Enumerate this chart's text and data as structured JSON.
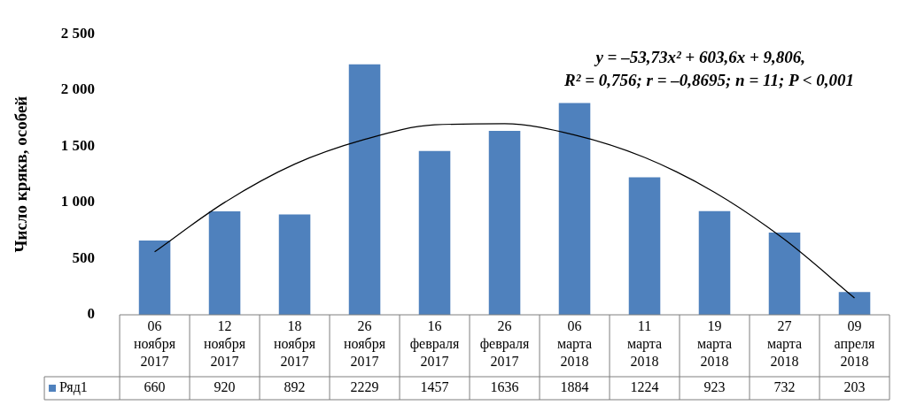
{
  "chart_data": {
    "type": "bar",
    "ylabel": "Число крякв, особей",
    "categories": [
      "06 ноября 2017",
      "12 ноября 2017",
      "18 ноября 2017",
      "26 ноября 2017",
      "16 февраля 2017",
      "26 февраля 2017",
      "06 марта 2018",
      "11 марта 2018",
      "19 марта 2018",
      "27 марта 2018",
      "09 апреля 2018"
    ],
    "series": [
      {
        "name": "Ряд1",
        "color": "#4f81bd",
        "values": [
          660,
          920,
          892,
          2229,
          1457,
          1636,
          1884,
          1224,
          923,
          732,
          203
        ],
        "value_labels": [
          "660",
          "920",
          "892",
          "2229",
          "1457",
          "1636",
          "1884",
          "1224",
          "923",
          "732",
          "203"
        ]
      },
      {
        "type": "line",
        "color": "#000000",
        "values": [
          560,
          1000,
          1340,
          1560,
          1690,
          1700,
          1600,
          1400,
          1090,
          670,
          150
        ]
      }
    ],
    "ylim": [
      0,
      2500
    ],
    "yticks": [
      {
        "value": 0,
        "label": "0"
      },
      {
        "value": 500,
        "label": "500"
      },
      {
        "value": 1000,
        "label": "1 000"
      },
      {
        "value": 1500,
        "label": "1 500"
      },
      {
        "value": 2000,
        "label": "2 000"
      },
      {
        "value": 2500,
        "label": "2 500"
      }
    ],
    "grid": false,
    "legend": "bottom",
    "marker": "none",
    "line_style": "solid",
    "annotations": [
      "y = –53,73x² + 603,6x + 9,806,",
      "R² = 0,756; r = –0,8695; n = 11; P < 0,001"
    ]
  }
}
